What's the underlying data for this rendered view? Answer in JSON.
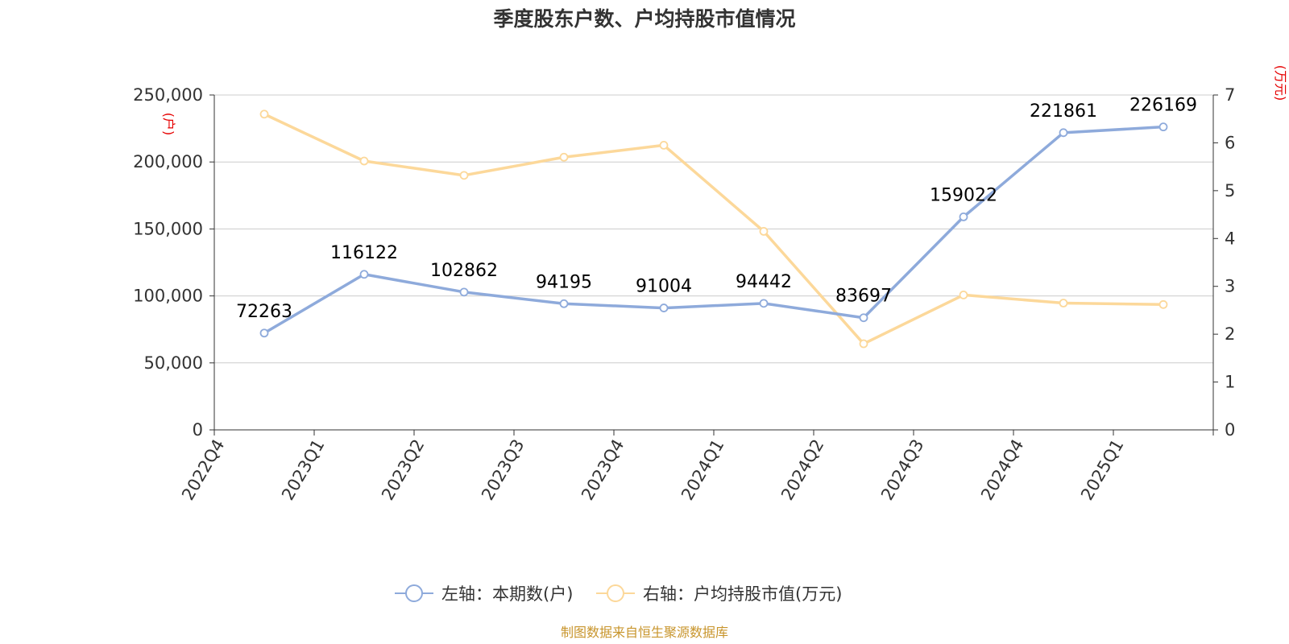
{
  "title": "季度股东户数、户均持股市值情况",
  "source": "制图数据来自恒生聚源数据库",
  "left_axis_unit": "(户)",
  "right_axis_unit": "(万元)",
  "colors": {
    "series1": "#8eaadb",
    "series2": "#fcd89a",
    "grid": "#cccccc",
    "axis": "#333333",
    "unit": "#e60000",
    "source": "#c8952c"
  },
  "chart_data": {
    "type": "line",
    "categories": [
      "2022Q4",
      "2023Q1",
      "2023Q2",
      "2023Q3",
      "2023Q4",
      "2024Q1",
      "2024Q2",
      "2024Q3",
      "2024Q4",
      "2025Q1"
    ],
    "series": [
      {
        "name": "左轴：本期数(户)",
        "axis": "left",
        "values": [
          72263,
          116122,
          102862,
          94195,
          91004,
          94442,
          83697,
          159022,
          221861,
          226169
        ],
        "data_labels": [
          "72263",
          "116122",
          "102862",
          "94195",
          "91004",
          "94442",
          "83697",
          "159022",
          "221861",
          "226169"
        ]
      },
      {
        "name": "右轴：户均持股市值(万元)",
        "axis": "right",
        "values": [
          6.6,
          5.62,
          5.32,
          5.7,
          5.95,
          4.15,
          1.8,
          2.82,
          2.65,
          2.62
        ]
      }
    ],
    "left_axis": {
      "min": 0,
      "max": 250000,
      "ticks": [
        0,
        50000,
        100000,
        150000,
        200000,
        250000
      ],
      "tick_labels": [
        "0",
        "50,000",
        "100,000",
        "150,000",
        "200,000",
        "250,000"
      ]
    },
    "right_axis": {
      "min": 0,
      "max": 7,
      "ticks": [
        0,
        1,
        2,
        3,
        4,
        5,
        6,
        7
      ],
      "tick_labels": [
        "0",
        "1",
        "2",
        "3",
        "4",
        "5",
        "6",
        "7"
      ]
    },
    "grid": true,
    "legend_position": "bottom"
  }
}
